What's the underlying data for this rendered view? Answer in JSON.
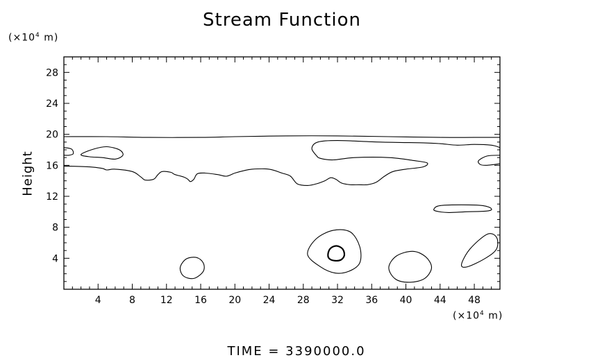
{
  "chart_data": {
    "type": "contour",
    "title": "Stream Function",
    "ylabel": "Height",
    "x_unit_prefix": "(×10",
    "x_unit_exp": "4",
    "x_unit_suffix": " m)",
    "y_unit_prefix": "(×10",
    "y_unit_exp": "4",
    "y_unit_suffix": " m)",
    "xlim": [
      0,
      51
    ],
    "ylim": [
      0,
      30
    ],
    "x_ticks": [
      4,
      8,
      12,
      16,
      20,
      24,
      28,
      32,
      36,
      40,
      44,
      48
    ],
    "y_ticks": [
      4,
      8,
      12,
      16,
      20,
      24,
      28
    ],
    "grid": false,
    "footer": "TIME  =  3390000.0",
    "contours": [
      {
        "name": "top-line",
        "closed": false,
        "points": [
          [
            0,
            19.7
          ],
          [
            5,
            19.7
          ],
          [
            10,
            19.6
          ],
          [
            16,
            19.6
          ],
          [
            20,
            19.7
          ],
          [
            26,
            19.8
          ],
          [
            32,
            19.8
          ],
          [
            38,
            19.7
          ],
          [
            44,
            19.6
          ],
          [
            48,
            19.6
          ],
          [
            51,
            19.6
          ]
        ]
      },
      {
        "name": "main-band",
        "closed": false,
        "points": [
          [
            0,
            15.9
          ],
          [
            3,
            15.8
          ],
          [
            4.5,
            15.6
          ],
          [
            5,
            15.4
          ],
          [
            6,
            15.5
          ],
          [
            8,
            15.2
          ],
          [
            9,
            14.5
          ],
          [
            9.5,
            14.1
          ],
          [
            10.5,
            14.2
          ],
          [
            11,
            14.8
          ],
          [
            11.5,
            15.2
          ],
          [
            12.5,
            15.1
          ],
          [
            13,
            14.8
          ],
          [
            14,
            14.5
          ],
          [
            14.5,
            14.2
          ],
          [
            14.8,
            13.9
          ],
          [
            15.2,
            14.2
          ],
          [
            15.6,
            14.9
          ],
          [
            16.5,
            15.0
          ],
          [
            18,
            14.8
          ],
          [
            19,
            14.6
          ],
          [
            20,
            15.0
          ],
          [
            21,
            15.3
          ],
          [
            22,
            15.5
          ],
          [
            24,
            15.5
          ],
          [
            25.5,
            15.0
          ],
          [
            26.5,
            14.6
          ],
          [
            27.3,
            13.6
          ],
          [
            28.5,
            13.4
          ],
          [
            29.5,
            13.6
          ],
          [
            30.5,
            14.0
          ],
          [
            31.2,
            14.4
          ],
          [
            31.8,
            14.2
          ],
          [
            32.5,
            13.7
          ],
          [
            33.5,
            13.5
          ],
          [
            34.5,
            13.5
          ],
          [
            35.5,
            13.5
          ],
          [
            36.5,
            13.8
          ],
          [
            37.5,
            14.6
          ],
          [
            38.5,
            15.2
          ],
          [
            40,
            15.5
          ],
          [
            42,
            15.8
          ],
          [
            42.5,
            16.3
          ],
          [
            41,
            16.6
          ],
          [
            38,
            17.0
          ],
          [
            34,
            17.0
          ],
          [
            31.5,
            16.7
          ],
          [
            30,
            16.9
          ],
          [
            29.5,
            17.3
          ],
          [
            29,
            18.2
          ],
          [
            29.7,
            19.0
          ],
          [
            32,
            19.2
          ],
          [
            37,
            19.0
          ],
          [
            42,
            18.9
          ],
          [
            44,
            18.8
          ],
          [
            46,
            18.6
          ],
          [
            48,
            18.7
          ],
          [
            50,
            18.6
          ],
          [
            51,
            18.3
          ]
        ]
      },
      {
        "name": "left-edge",
        "closed": false,
        "points": [
          [
            0,
            18.3
          ],
          [
            0.9,
            18.1
          ],
          [
            1.1,
            17.5
          ],
          [
            0.6,
            17.3
          ],
          [
            0,
            17.3
          ]
        ]
      },
      {
        "name": "left-oval",
        "closed": true,
        "points": [
          [
            2,
            17.4
          ],
          [
            3.5,
            18.1
          ],
          [
            5,
            18.4
          ],
          [
            6.5,
            18.0
          ],
          [
            6.9,
            17.3
          ],
          [
            6,
            16.8
          ],
          [
            4.5,
            17.0
          ],
          [
            3,
            17.1
          ],
          [
            2,
            17.4
          ]
        ]
      },
      {
        "name": "right-edge",
        "closed": false,
        "points": [
          [
            51,
            17.3
          ],
          [
            49.5,
            17.2
          ],
          [
            48.5,
            16.6
          ],
          [
            48.7,
            16.1
          ],
          [
            49.5,
            16.0
          ],
          [
            51,
            16.2
          ]
        ]
      },
      {
        "name": "right-oval",
        "closed": true,
        "points": [
          [
            43.3,
            10.4
          ],
          [
            44,
            10.8
          ],
          [
            46.5,
            10.9
          ],
          [
            49,
            10.8
          ],
          [
            50,
            10.4
          ],
          [
            49.5,
            10.1
          ],
          [
            47,
            10.0
          ],
          [
            45,
            9.9
          ],
          [
            43.5,
            10.1
          ],
          [
            43.3,
            10.4
          ]
        ]
      },
      {
        "name": "bottom-oval-1",
        "closed": true,
        "points": [
          [
            13.6,
            2.8
          ],
          [
            14.3,
            3.9
          ],
          [
            15.5,
            4.1
          ],
          [
            16.3,
            3.4
          ],
          [
            16.3,
            2.3
          ],
          [
            15.2,
            1.4
          ],
          [
            14,
            1.7
          ],
          [
            13.6,
            2.8
          ]
        ]
      },
      {
        "name": "bottom-oval-2",
        "closed": true,
        "points": [
          [
            28.5,
            4.5
          ],
          [
            29.5,
            6.5
          ],
          [
            31.5,
            7.6
          ],
          [
            33.5,
            7.4
          ],
          [
            34.6,
            5.5
          ],
          [
            34.6,
            3.4
          ],
          [
            33.3,
            2.3
          ],
          [
            31.7,
            2.1
          ],
          [
            30,
            2.9
          ],
          [
            28.5,
            4.5
          ]
        ]
      },
      {
        "name": "bottom-oval-3",
        "closed": true,
        "points": [
          [
            38,
            2.8
          ],
          [
            38.9,
            4.3
          ],
          [
            40.8,
            4.9
          ],
          [
            42.3,
            4.2
          ],
          [
            43,
            2.8
          ],
          [
            42.2,
            1.4
          ],
          [
            40.5,
            0.9
          ],
          [
            38.8,
            1.3
          ],
          [
            38,
            2.8
          ]
        ]
      },
      {
        "name": "bottom-oval-4",
        "closed": true,
        "points": [
          [
            46.5,
            3.2
          ],
          [
            47.5,
            5.2
          ],
          [
            49.5,
            7.1
          ],
          [
            50.6,
            6.7
          ],
          [
            50.6,
            5.2
          ],
          [
            49.3,
            4.0
          ],
          [
            47.2,
            2.9
          ],
          [
            46.5,
            3.2
          ]
        ]
      },
      {
        "name": "center-ring",
        "closed": true,
        "bold": true,
        "points": [
          [
            30.9,
            4.6
          ],
          [
            31.2,
            5.3
          ],
          [
            31.9,
            5.6
          ],
          [
            32.6,
            5.2
          ],
          [
            32.8,
            4.4
          ],
          [
            32.4,
            3.8
          ],
          [
            31.6,
            3.7
          ],
          [
            31.0,
            4.0
          ],
          [
            30.9,
            4.6
          ]
        ]
      }
    ]
  }
}
